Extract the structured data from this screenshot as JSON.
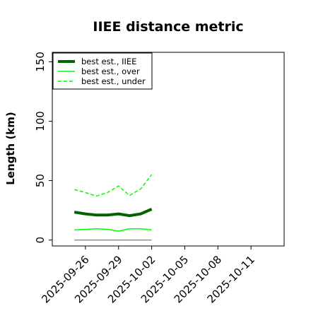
{
  "chart_data": {
    "type": "line",
    "title": "IIEE distance metric",
    "xlabel": "",
    "ylabel": "Length (km)",
    "ylim": [
      -5,
      158
    ],
    "xlim": [
      "2025-09-23",
      "2025-10-14"
    ],
    "yticks": [
      0,
      50,
      100,
      150
    ],
    "xticks": [
      "2025-09-26",
      "2025-09-29",
      "2025-10-02",
      "2025-10-05",
      "2025-10-08",
      "2025-10-11"
    ],
    "x": [
      "2025-09-25",
      "2025-09-26",
      "2025-09-27",
      "2025-09-28",
      "2025-09-29",
      "2025-09-30",
      "2025-10-01",
      "2025-10-02"
    ],
    "series": [
      {
        "name": "best est., IIEE",
        "color": "#006400",
        "style": "solid-thick",
        "values": [
          23.5,
          22,
          21,
          21,
          22,
          20.5,
          22,
          26
        ]
      },
      {
        "name": "best est., over",
        "color": "#00ff00",
        "style": "solid",
        "values": [
          8.5,
          9,
          9.5,
          9,
          7.5,
          9.5,
          9.5,
          8.5
        ]
      },
      {
        "name": "best est., under",
        "color": "#00ff00",
        "style": "dashed",
        "values": [
          42.5,
          40,
          37,
          40,
          45.5,
          37.5,
          43,
          55
        ]
      },
      {
        "color": "#808080",
        "style": "solid-thin",
        "values": [
          0,
          0,
          0,
          0,
          0,
          0,
          0,
          0
        ]
      }
    ],
    "legend": {
      "position": "top-left",
      "frame": true
    },
    "grid": false
  }
}
